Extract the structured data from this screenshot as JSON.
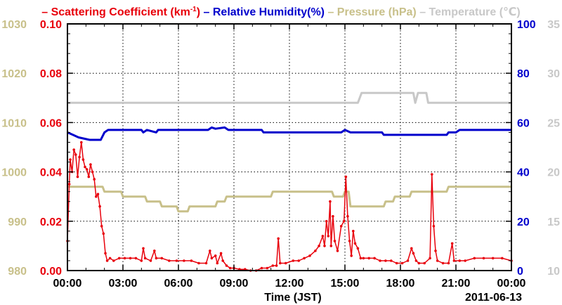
{
  "chart_data": {
    "type": "line",
    "legend": [
      {
        "label": "Scattering Coefficient (km",
        "sup": "-1",
        "tail": ")",
        "color": "#e8000b"
      },
      {
        "label": "Relative Humidity(%)",
        "color": "#0000cc"
      },
      {
        "label": "Pressure (hPa)",
        "color": "#c8c08a"
      },
      {
        "label": "Temperature (℃)",
        "color": "#c8c8c8"
      }
    ],
    "legend_dash": "–",
    "xlabel": "Time (JST)",
    "date_label": "2011-06-13",
    "x_range_hours": [
      0,
      24
    ],
    "x_ticks": [
      {
        "h": 0,
        "label": "00:00"
      },
      {
        "h": 3,
        "label": "03:00"
      },
      {
        "h": 6,
        "label": "06:00"
      },
      {
        "h": 9,
        "label": "09:00"
      },
      {
        "h": 12,
        "label": "12:00"
      },
      {
        "h": 15,
        "label": "15:00"
      },
      {
        "h": 18,
        "label": "18:00"
      },
      {
        "h": 21,
        "label": "21:00"
      },
      {
        "h": 24,
        "label": "00:00"
      }
    ],
    "axes": {
      "pressure": {
        "range": [
          980,
          1030
        ],
        "ticks": [
          "980",
          "990",
          "1000",
          "1010",
          "1020",
          "1030"
        ],
        "color": "#c8c08a"
      },
      "scattering": {
        "range": [
          0,
          0.1
        ],
        "ticks": [
          "0.00",
          "0.02",
          "0.04",
          "0.06",
          "0.08",
          "0.10"
        ],
        "color": "#e8000b"
      },
      "humidity": {
        "range": [
          0,
          100
        ],
        "ticks": [
          "0",
          "20",
          "40",
          "60",
          "80",
          "100"
        ],
        "color": "#0000cc"
      },
      "temperature": {
        "range": [
          10,
          35
        ],
        "ticks": [
          "10",
          "15",
          "20",
          "25",
          "30",
          "35"
        ],
        "color": "#c8c8c8"
      }
    },
    "grid": true,
    "series": [
      {
        "name": "Temperature",
        "axis": "temperature",
        "color": "#c8c8c8",
        "step": true,
        "points": [
          [
            0,
            27
          ],
          [
            15.7,
            27
          ],
          [
            15.9,
            28
          ],
          [
            18.7,
            28
          ],
          [
            18.8,
            27
          ],
          [
            18.95,
            28
          ],
          [
            19.4,
            28
          ],
          [
            19.5,
            27
          ],
          [
            24,
            27
          ]
        ]
      },
      {
        "name": "Relative Humidity",
        "axis": "humidity",
        "color": "#0000cc",
        "step": true,
        "points": [
          [
            0,
            56
          ],
          [
            0.3,
            55
          ],
          [
            0.6,
            54
          ],
          [
            1.2,
            53
          ],
          [
            1.8,
            53
          ],
          [
            2.0,
            56
          ],
          [
            2.2,
            57
          ],
          [
            4.0,
            57
          ],
          [
            4.1,
            56
          ],
          [
            4.3,
            57
          ],
          [
            4.8,
            56
          ],
          [
            4.9,
            57
          ],
          [
            7.6,
            57
          ],
          [
            7.8,
            58
          ],
          [
            8.0,
            57.5
          ],
          [
            8.5,
            58
          ],
          [
            8.7,
            57
          ],
          [
            10.5,
            57
          ],
          [
            10.6,
            56
          ],
          [
            14.8,
            56
          ],
          [
            15.0,
            57
          ],
          [
            15.3,
            56
          ],
          [
            17.0,
            56
          ],
          [
            17.1,
            55
          ],
          [
            20.5,
            55
          ],
          [
            20.6,
            56
          ],
          [
            21.0,
            56
          ],
          [
            21.2,
            57
          ],
          [
            24,
            57
          ]
        ]
      },
      {
        "name": "Pressure",
        "axis": "pressure",
        "color": "#c8c08a",
        "step": true,
        "points": [
          [
            0,
            997
          ],
          [
            1.9,
            997
          ],
          [
            2.0,
            996
          ],
          [
            2.9,
            996
          ],
          [
            3.0,
            995
          ],
          [
            4.2,
            995
          ],
          [
            4.3,
            994
          ],
          [
            5.0,
            994
          ],
          [
            5.1,
            993
          ],
          [
            5.8,
            993
          ],
          [
            5.9,
            993
          ],
          [
            6.0,
            992
          ],
          [
            6.5,
            992
          ],
          [
            6.6,
            993
          ],
          [
            8.0,
            993
          ],
          [
            8.1,
            994
          ],
          [
            8.5,
            994
          ],
          [
            8.6,
            995
          ],
          [
            11.0,
            995
          ],
          [
            11.1,
            996
          ],
          [
            14.3,
            996
          ],
          [
            14.4,
            995
          ],
          [
            14.9,
            995
          ],
          [
            15.0,
            996
          ],
          [
            15.2,
            996
          ],
          [
            15.3,
            993
          ],
          [
            17.1,
            993
          ],
          [
            17.2,
            994
          ],
          [
            17.6,
            994
          ],
          [
            17.7,
            995
          ],
          [
            18.5,
            995
          ],
          [
            18.6,
            996
          ],
          [
            20.5,
            996
          ],
          [
            20.6,
            997
          ],
          [
            24,
            997
          ]
        ]
      },
      {
        "name": "Scattering Coefficient",
        "axis": "scattering",
        "color": "#e8000b",
        "markers": true,
        "points": [
          [
            0.0,
            0.012
          ],
          [
            0.1,
            0.035
          ],
          [
            0.15,
            0.045
          ],
          [
            0.25,
            0.04
          ],
          [
            0.35,
            0.049
          ],
          [
            0.45,
            0.047
          ],
          [
            0.55,
            0.038
          ],
          [
            0.65,
            0.046
          ],
          [
            0.75,
            0.052
          ],
          [
            0.85,
            0.045
          ],
          [
            0.95,
            0.042
          ],
          [
            1.05,
            0.041
          ],
          [
            1.15,
            0.038
          ],
          [
            1.25,
            0.043
          ],
          [
            1.35,
            0.04
          ],
          [
            1.45,
            0.037
          ],
          [
            1.55,
            0.03
          ],
          [
            1.65,
            0.031
          ],
          [
            1.75,
            0.026
          ],
          [
            1.85,
            0.018
          ],
          [
            1.95,
            0.015
          ],
          [
            2.05,
            0.007
          ],
          [
            2.15,
            0.004
          ],
          [
            2.3,
            0.005
          ],
          [
            2.5,
            0.004
          ],
          [
            2.8,
            0.005
          ],
          [
            3.1,
            0.005
          ],
          [
            3.4,
            0.005
          ],
          [
            3.7,
            0.005
          ],
          [
            4.0,
            0.004
          ],
          [
            4.1,
            0.009
          ],
          [
            4.2,
            0.005
          ],
          [
            4.5,
            0.004
          ],
          [
            4.7,
            0.008
          ],
          [
            4.8,
            0.005
          ],
          [
            5.1,
            0.005
          ],
          [
            5.5,
            0.004
          ],
          [
            5.9,
            0.004
          ],
          [
            6.3,
            0.004
          ],
          [
            6.7,
            0.004
          ],
          [
            7.1,
            0.003
          ],
          [
            7.5,
            0.003
          ],
          [
            7.7,
            0.008
          ],
          [
            7.8,
            0.005
          ],
          [
            8.0,
            0.006
          ],
          [
            8.1,
            0.003
          ],
          [
            8.3,
            0.007
          ],
          [
            8.4,
            0.004
          ],
          [
            8.6,
            0.002
          ],
          [
            8.8,
            0.001
          ],
          [
            9.0,
            0.001
          ],
          [
            9.3,
            0.0005
          ],
          [
            9.6,
            0.0005
          ],
          [
            9.9,
            0.0
          ],
          [
            10.2,
            0.0
          ],
          [
            10.5,
            0.001
          ],
          [
            10.8,
            0.001
          ],
          [
            11.1,
            0.002
          ],
          [
            11.3,
            0.002
          ],
          [
            11.4,
            0.013
          ],
          [
            11.5,
            0.003
          ],
          [
            11.8,
            0.003
          ],
          [
            12.2,
            0.004
          ],
          [
            12.5,
            0.004
          ],
          [
            12.8,
            0.005
          ],
          [
            13.1,
            0.006
          ],
          [
            13.4,
            0.008
          ],
          [
            13.6,
            0.01
          ],
          [
            13.8,
            0.014
          ],
          [
            13.9,
            0.01
          ],
          [
            14.0,
            0.02
          ],
          [
            14.1,
            0.014
          ],
          [
            14.2,
            0.028
          ],
          [
            14.25,
            0.01
          ],
          [
            14.35,
            0.022
          ],
          [
            14.45,
            0.012
          ],
          [
            14.6,
            0.008
          ],
          [
            14.8,
            0.018
          ],
          [
            14.95,
            0.02
          ],
          [
            15.05,
            0.038
          ],
          [
            15.15,
            0.022
          ],
          [
            15.25,
            0.012
          ],
          [
            15.35,
            0.006
          ],
          [
            15.45,
            0.016
          ],
          [
            15.55,
            0.011
          ],
          [
            15.7,
            0.009
          ],
          [
            15.85,
            0.005
          ],
          [
            16.0,
            0.005
          ],
          [
            16.3,
            0.005
          ],
          [
            16.6,
            0.005
          ],
          [
            16.9,
            0.004
          ],
          [
            17.2,
            0.004
          ],
          [
            17.5,
            0.004
          ],
          [
            17.8,
            0.003
          ],
          [
            18.1,
            0.003
          ],
          [
            18.4,
            0.004
          ],
          [
            18.6,
            0.009
          ],
          [
            18.7,
            0.007
          ],
          [
            18.85,
            0.004
          ],
          [
            19.0,
            0.003
          ],
          [
            19.3,
            0.003
          ],
          [
            19.6,
            0.005
          ],
          [
            19.7,
            0.039
          ],
          [
            19.8,
            0.018
          ],
          [
            19.9,
            0.008
          ],
          [
            20.0,
            0.004
          ],
          [
            20.3,
            0.003
          ],
          [
            20.6,
            0.003
          ],
          [
            20.8,
            0.011
          ],
          [
            20.9,
            0.004
          ],
          [
            21.2,
            0.004
          ],
          [
            21.5,
            0.004
          ],
          [
            22.0,
            0.005
          ],
          [
            22.5,
            0.005
          ],
          [
            23.0,
            0.005
          ],
          [
            23.5,
            0.005
          ],
          [
            24.0,
            0.004
          ]
        ]
      }
    ]
  }
}
